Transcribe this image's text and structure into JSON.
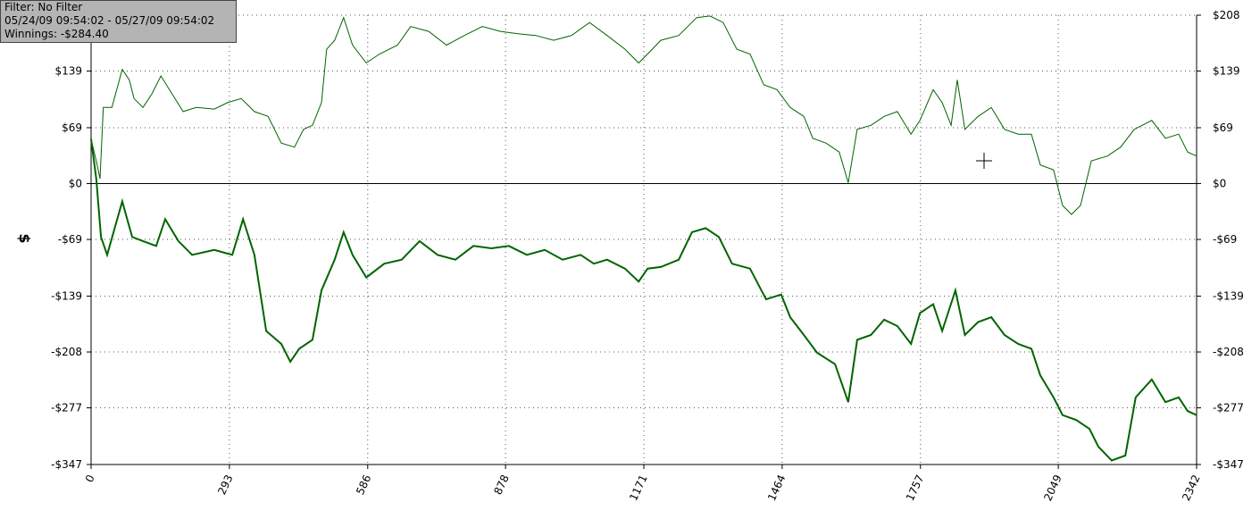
{
  "chart_data": {
    "type": "line",
    "info": {
      "filter": "Filter: No Filter",
      "range": "05/24/09 09:54:02 - 05/27/09 09:54:02",
      "winnings": "Winnings: -$284.40"
    },
    "y_label": "$",
    "xlim": [
      0,
      2342
    ],
    "xticks": [
      0,
      293,
      586,
      878,
      1171,
      1464,
      1757,
      2049,
      2342
    ],
    "ylim": [
      -347,
      208
    ],
    "yticks": [
      {
        "value": 208,
        "label": "$208"
      },
      {
        "value": 139,
        "label": "$139"
      },
      {
        "value": 69,
        "label": "$69"
      },
      {
        "value": 0,
        "label": "$0"
      },
      {
        "value": -69,
        "label": "-$69"
      },
      {
        "value": -139,
        "label": "-$139"
      },
      {
        "value": -208,
        "label": "-$208"
      },
      {
        "value": -277,
        "label": "-$277"
      },
      {
        "value": -347,
        "label": "-$347"
      }
    ],
    "grid": true,
    "series": [
      {
        "color": "#006400",
        "x": [
          0,
          11,
          19,
          26,
          44,
          66,
          81,
          91,
          110,
          129,
          148,
          166,
          195,
          223,
          261,
          289,
          318,
          346,
          375,
          403,
          431,
          450,
          469,
          488,
          499,
          516,
          535,
          554,
          583,
          611,
          649,
          677,
          715,
          753,
          791,
          829,
          867,
          904,
          942,
          980,
          1018,
          1056,
          1093,
          1131,
          1160,
          1179,
          1207,
          1245,
          1283,
          1311,
          1339,
          1368,
          1396,
          1425,
          1453,
          1481,
          1510,
          1529,
          1557,
          1585,
          1604,
          1623,
          1652,
          1680,
          1708,
          1737,
          1756,
          1784,
          1803,
          1822,
          1835,
          1851,
          1879,
          1907,
          1935,
          1964,
          1992,
          2011,
          2039,
          2058,
          2077,
          2096,
          2119,
          2153,
          2181,
          2210,
          2247,
          2276,
          2304,
          2323,
          2342
        ],
        "values": [
          55,
          28,
          6,
          94,
          94,
          141,
          128,
          105,
          94,
          111,
          133,
          116,
          89,
          94,
          92,
          100,
          105,
          89,
          83,
          50,
          45,
          67,
          72,
          100,
          166,
          177,
          205,
          171,
          149,
          160,
          171,
          194,
          188,
          171,
          183,
          194,
          188,
          185,
          183,
          177,
          183,
          199,
          183,
          166,
          149,
          160,
          177,
          183,
          205,
          207,
          199,
          166,
          160,
          122,
          116,
          94,
          83,
          56,
          50,
          39,
          1,
          67,
          72,
          83,
          89,
          61,
          78,
          116,
          100,
          72,
          128,
          67,
          83,
          94,
          67,
          61,
          61,
          23,
          17,
          -27,
          -38,
          -27,
          28,
          34,
          45,
          67,
          78,
          56,
          61,
          39,
          34
        ]
      },
      {
        "color": "#006400",
        "x": [
          0,
          11,
          21,
          34,
          53,
          66,
          87,
          110,
          138,
          157,
          185,
          214,
          261,
          299,
          322,
          346,
          371,
          403,
          422,
          441,
          469,
          488,
          516,
          535,
          554,
          583,
          621,
          658,
          696,
          734,
          772,
          810,
          848,
          885,
          923,
          961,
          999,
          1037,
          1065,
          1093,
          1131,
          1160,
          1179,
          1207,
          1245,
          1273,
          1302,
          1330,
          1358,
          1396,
          1430,
          1462,
          1481,
          1510,
          1538,
          1576,
          1604,
          1623,
          1652,
          1680,
          1708,
          1737,
          1756,
          1784,
          1803,
          1831,
          1851,
          1879,
          1907,
          1935,
          1964,
          1992,
          2011,
          2039,
          2058,
          2087,
          2115,
          2134,
          2162,
          2191,
          2213,
          2247,
          2276,
          2304,
          2323,
          2342
        ],
        "values": [
          55,
          6,
          -66,
          -88,
          -49,
          -22,
          -66,
          -71,
          -77,
          -44,
          -71,
          -88,
          -82,
          -88,
          -44,
          -88,
          -182,
          -198,
          -220,
          -204,
          -193,
          -132,
          -94,
          -60,
          -88,
          -116,
          -99,
          -94,
          -71,
          -88,
          -94,
          -77,
          -80,
          -77,
          -88,
          -82,
          -94,
          -88,
          -99,
          -94,
          -105,
          -121,
          -105,
          -103,
          -94,
          -60,
          -55,
          -66,
          -99,
          -105,
          -143,
          -137,
          -165,
          -187,
          -209,
          -223,
          -270,
          -193,
          -187,
          -168,
          -176,
          -198,
          -160,
          -149,
          -182,
          -132,
          -187,
          -171,
          -165,
          -187,
          -198,
          -204,
          -237,
          -264,
          -286,
          -292,
          -303,
          -325,
          -342,
          -336,
          -264,
          -242,
          -270,
          -264,
          -281,
          -286
        ]
      }
    ]
  }
}
